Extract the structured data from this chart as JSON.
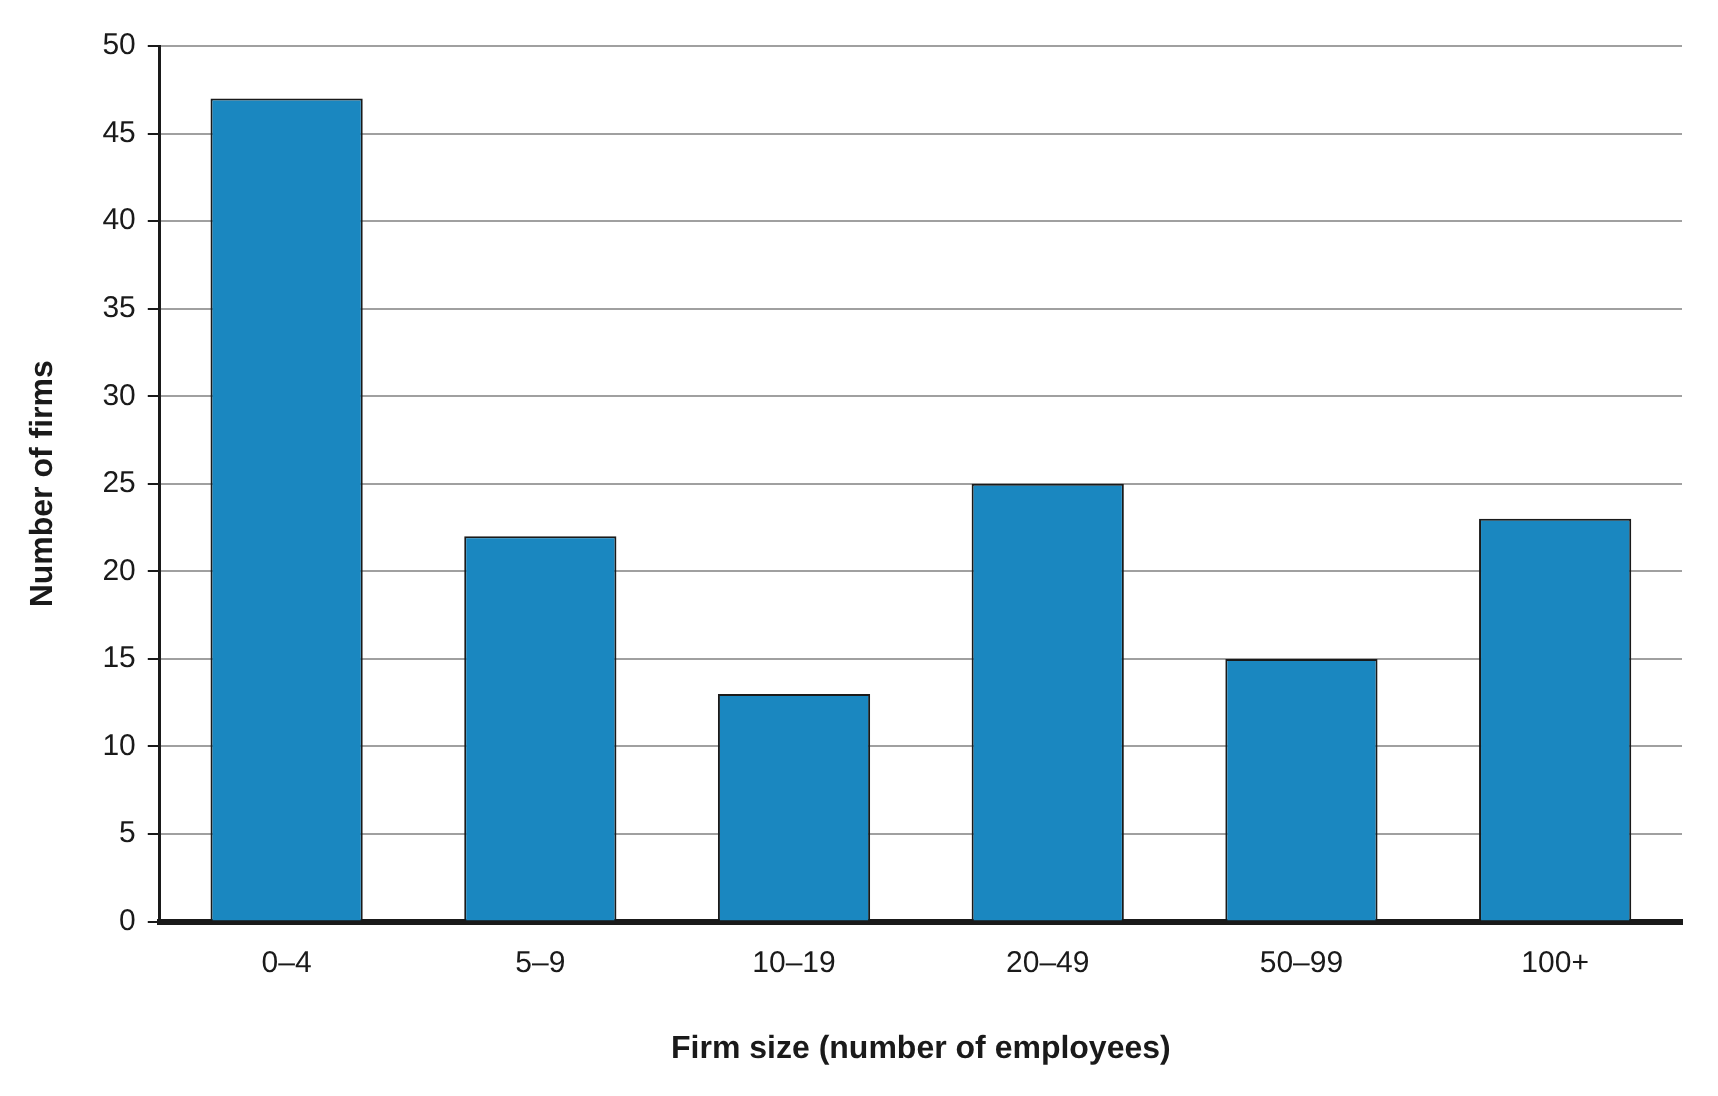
{
  "chart_data": {
    "type": "bar",
    "xlabel": "Firm size (number of employees)",
    "ylabel": "Number of firms",
    "categories": [
      "0–4",
      "5–9",
      "10–19",
      "20–49",
      "50–99",
      "100+"
    ],
    "values": [
      47,
      22,
      13,
      25,
      15,
      23
    ],
    "color": "#1a87c0",
    "ylim": [
      0,
      50
    ],
    "yticks": [
      0,
      5,
      10,
      15,
      20,
      25,
      30,
      35,
      40,
      45,
      50
    ],
    "grid": "y",
    "legend": false
  }
}
